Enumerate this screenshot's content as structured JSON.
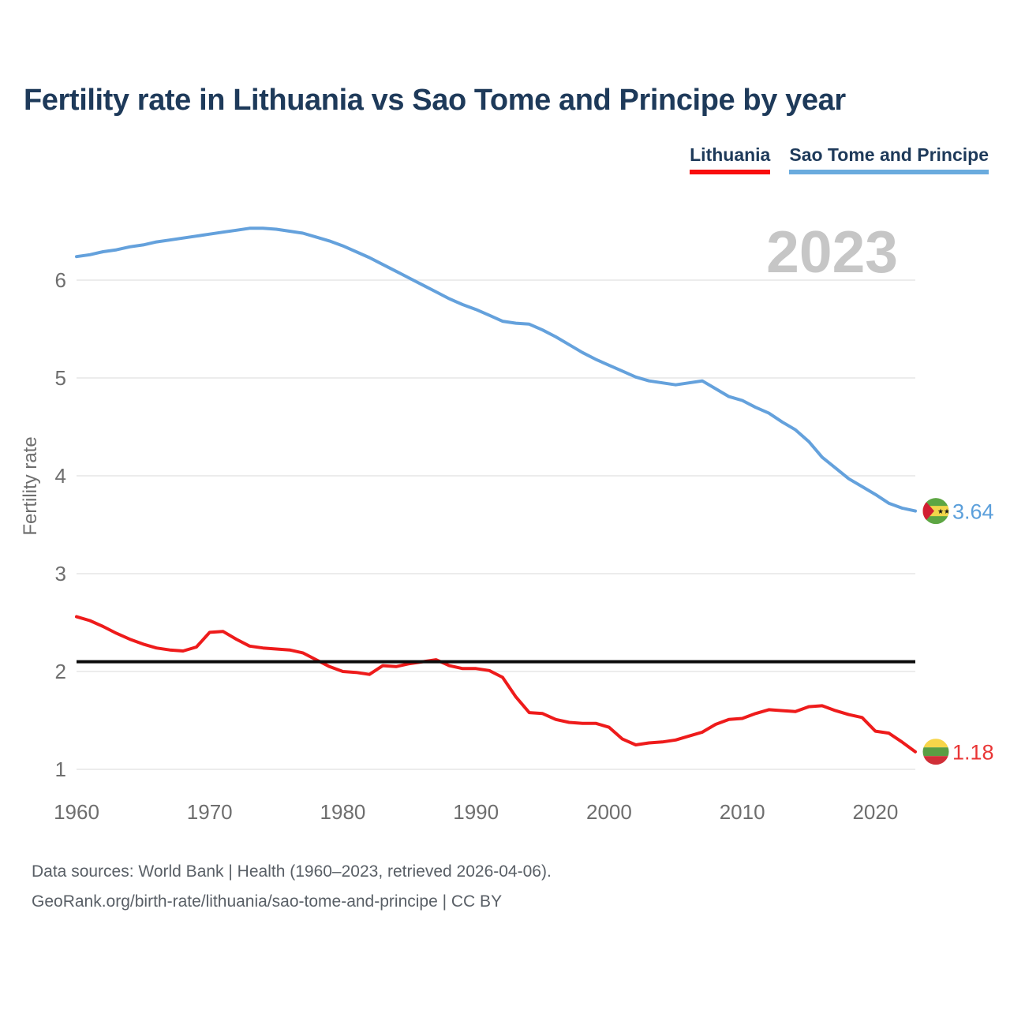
{
  "header": {
    "title": "Fertility rate in Lithuania vs Sao Tome and Principe by year"
  },
  "legend": {
    "items": [
      {
        "label": "Lithuania",
        "color": "#f90d0d"
      },
      {
        "label": "Sao Tome and Principe",
        "color": "#6aabde"
      }
    ]
  },
  "watermark": "2023",
  "chart_data": {
    "type": "line",
    "title": "Fertility rate in Lithuania vs Sao Tome and Principe by year",
    "xlabel": "",
    "ylabel": "Fertility rate",
    "yticks": [
      1,
      2,
      3,
      4,
      5,
      6
    ],
    "xticks": [
      1960,
      1970,
      1980,
      1990,
      2000,
      2010,
      2020
    ],
    "ylim": [
      0.9,
      6.7
    ],
    "xlim": [
      1960,
      2023
    ],
    "grid": "horizontal-only",
    "legend_position": "top-right",
    "x": [
      1960,
      1961,
      1962,
      1963,
      1964,
      1965,
      1966,
      1967,
      1968,
      1969,
      1970,
      1971,
      1972,
      1973,
      1974,
      1975,
      1976,
      1977,
      1978,
      1979,
      1980,
      1981,
      1982,
      1983,
      1984,
      1985,
      1986,
      1987,
      1988,
      1989,
      1990,
      1991,
      1992,
      1993,
      1994,
      1995,
      1996,
      1997,
      1998,
      1999,
      2000,
      2001,
      2002,
      2003,
      2004,
      2005,
      2006,
      2007,
      2008,
      2009,
      2010,
      2011,
      2012,
      2013,
      2014,
      2015,
      2016,
      2017,
      2018,
      2019,
      2020,
      2021,
      2022,
      2023
    ],
    "series": [
      {
        "name": "Sao Tome and Principe",
        "color": "#64a1dc",
        "label_color": "#5b9fdb",
        "end_label": "3.64",
        "values": [
          6.24,
          6.26,
          6.29,
          6.31,
          6.34,
          6.36,
          6.39,
          6.41,
          6.43,
          6.45,
          6.47,
          6.49,
          6.51,
          6.53,
          6.53,
          6.52,
          6.5,
          6.48,
          6.44,
          6.4,
          6.35,
          6.29,
          6.23,
          6.16,
          6.09,
          6.02,
          5.95,
          5.88,
          5.81,
          5.75,
          5.7,
          5.64,
          5.58,
          5.56,
          5.55,
          5.49,
          5.42,
          5.34,
          5.26,
          5.19,
          5.13,
          5.07,
          5.01,
          4.97,
          4.95,
          4.93,
          4.95,
          4.97,
          4.89,
          4.81,
          4.77,
          4.7,
          4.64,
          4.55,
          4.47,
          4.35,
          4.19,
          4.08,
          3.97,
          3.89,
          3.81,
          3.72,
          3.67,
          3.64
        ]
      },
      {
        "name": "Lithuania",
        "color": "#ee1b1b",
        "label_color": "#e93535",
        "end_label": "1.18",
        "values": [
          2.56,
          2.52,
          2.46,
          2.39,
          2.33,
          2.28,
          2.24,
          2.22,
          2.21,
          2.25,
          2.4,
          2.41,
          2.33,
          2.26,
          2.24,
          2.23,
          2.22,
          2.19,
          2.12,
          2.05,
          2.0,
          1.99,
          1.97,
          2.06,
          2.05,
          2.08,
          2.1,
          2.12,
          2.06,
          2.03,
          2.03,
          2.01,
          1.94,
          1.74,
          1.58,
          1.57,
          1.51,
          1.48,
          1.47,
          1.47,
          1.43,
          1.31,
          1.25,
          1.27,
          1.28,
          1.3,
          1.34,
          1.38,
          1.46,
          1.51,
          1.52,
          1.57,
          1.61,
          1.6,
          1.59,
          1.64,
          1.65,
          1.6,
          1.56,
          1.53,
          1.39,
          1.37,
          1.28,
          1.18
        ]
      }
    ],
    "reference_line": {
      "value": 2.1,
      "color": "#0b0b0b"
    }
  },
  "flags": {
    "sao_tome": {
      "green": "#5da643",
      "yellow": "#f2d64b",
      "red": "#d21f32",
      "star": "#1a1a1a"
    },
    "lithuania": {
      "yellow": "#f6d54a",
      "green": "#5a9e43",
      "red": "#d02f38"
    }
  },
  "axis_style": {
    "tick_color": "#6e6e6e",
    "grid_color": "#ececec",
    "watermark_color": "#c6c6c6"
  },
  "footer": {
    "line1": "Data sources: World Bank | Health (1960–2023, retrieved 2026-04-06).",
    "line2": "GeoRank.org/birth-rate/lithuania/sao-tome-and-principe | CC BY"
  }
}
